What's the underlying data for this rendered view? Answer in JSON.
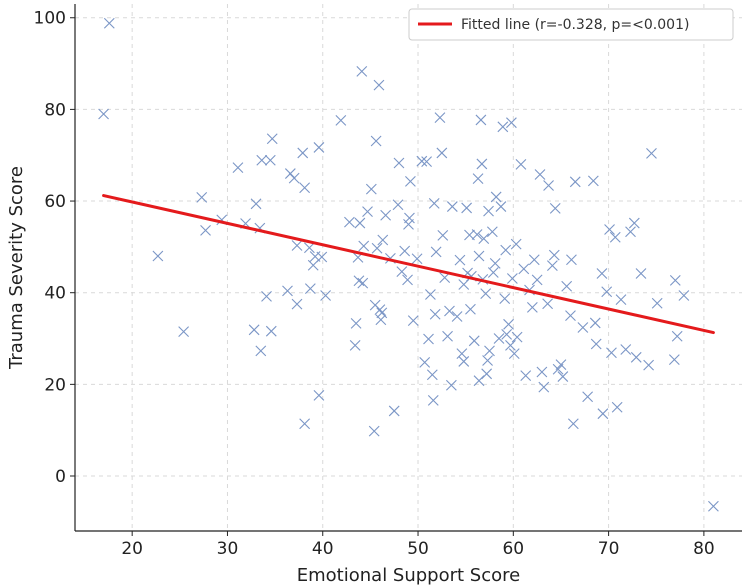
{
  "chart_data": {
    "type": "scatter",
    "title": "",
    "xlabel": "Emotional Support Score",
    "ylabel": "Trauma Severity Score",
    "xlim": [
      14,
      84
    ],
    "ylim": [
      -12,
      103
    ],
    "xticks": [
      20,
      30,
      40,
      50,
      60,
      70,
      80
    ],
    "yticks": [
      0,
      20,
      40,
      60,
      80,
      100
    ],
    "grid": true,
    "legend_position": "top-right",
    "point_color": "#7b96c6",
    "line_color": "#e41a1c",
    "fit_line": {
      "label": "Fitted line (r=-0.328, p=<0.001)",
      "x": [
        17,
        81
      ],
      "y": [
        61.2,
        31.3
      ]
    },
    "series": [
      {
        "marker": "x",
        "points": [
          [
            17,
            79
          ],
          [
            17.6,
            98.8
          ],
          [
            22.7,
            48
          ],
          [
            25.4,
            31.5
          ],
          [
            27.3,
            60.8
          ],
          [
            27.7,
            53.6
          ],
          [
            29.4,
            55.9
          ],
          [
            31.1,
            67.3
          ],
          [
            31.9,
            55.1
          ],
          [
            32.8,
            31.9
          ],
          [
            33,
            59.4
          ],
          [
            33.4,
            54.1
          ],
          [
            33.5,
            27.3
          ],
          [
            33.6,
            68.9
          ],
          [
            34.1,
            39.2
          ],
          [
            34.5,
            68.9
          ],
          [
            34.6,
            31.6
          ],
          [
            34.7,
            73.6
          ],
          [
            36.3,
            40.4
          ],
          [
            36.6,
            66
          ],
          [
            37,
            65
          ],
          [
            37.3,
            37.5
          ],
          [
            37.3,
            50.3
          ],
          [
            37.9,
            70.5
          ],
          [
            38.1,
            11.4
          ],
          [
            38.1,
            62.9
          ],
          [
            38.6,
            49.8
          ],
          [
            38.7,
            40.9
          ],
          [
            39,
            46
          ],
          [
            39.2,
            47.9
          ],
          [
            39.6,
            17.6
          ],
          [
            39.6,
            71.7
          ],
          [
            39.9,
            47.8
          ],
          [
            40.3,
            39.4
          ],
          [
            41.9,
            77.6
          ],
          [
            42.8,
            55.4
          ],
          [
            43.4,
            28.5
          ],
          [
            43.5,
            33.3
          ],
          [
            43.7,
            47.7
          ],
          [
            43.8,
            42.6
          ],
          [
            43.9,
            55.2
          ],
          [
            44.1,
            88.3
          ],
          [
            44.2,
            42.1
          ],
          [
            44.3,
            50.2
          ],
          [
            44.7,
            57.7
          ],
          [
            45.1,
            62.6
          ],
          [
            45.4,
            9.8
          ],
          [
            45.5,
            37.3
          ],
          [
            45.6,
            73.1
          ],
          [
            45.7,
            49.7
          ],
          [
            45.9,
            85.3
          ],
          [
            46,
            36.3
          ],
          [
            46.1,
            34.1
          ],
          [
            46.2,
            35.6
          ],
          [
            46.3,
            51.5
          ],
          [
            46.6,
            56.9
          ],
          [
            47.1,
            47.5
          ],
          [
            47.5,
            14.2
          ],
          [
            47.9,
            59.2
          ],
          [
            48,
            68.3
          ],
          [
            48.3,
            44.6
          ],
          [
            48.6,
            49.1
          ],
          [
            48.9,
            42.8
          ],
          [
            49,
            54.9
          ],
          [
            49.1,
            56.3
          ],
          [
            49.2,
            64.3
          ],
          [
            49.5,
            33.9
          ],
          [
            49.9,
            47.4
          ],
          [
            50.4,
            68.7
          ],
          [
            50.7,
            24.8
          ],
          [
            50.9,
            68.6
          ],
          [
            51.1,
            29.9
          ],
          [
            51.3,
            39.6
          ],
          [
            51.5,
            22.1
          ],
          [
            51.6,
            16.5
          ],
          [
            51.7,
            59.5
          ],
          [
            51.8,
            35.3
          ],
          [
            51.9,
            48.9
          ],
          [
            52.3,
            78.2
          ],
          [
            52.5,
            70.5
          ],
          [
            52.6,
            52.5
          ],
          [
            52.8,
            43.3
          ],
          [
            53.1,
            30.5
          ],
          [
            53.3,
            36
          ],
          [
            53.5,
            19.8
          ],
          [
            53.6,
            58.8
          ],
          [
            54.1,
            34.8
          ],
          [
            54.4,
            47.1
          ],
          [
            54.6,
            26.7
          ],
          [
            54.8,
            25
          ],
          [
            54.8,
            41.8
          ],
          [
            55.1,
            58.5
          ],
          [
            55.2,
            44.3
          ],
          [
            55.4,
            52.6
          ],
          [
            55.5,
            36.4
          ],
          [
            55.6,
            43.6
          ],
          [
            55.9,
            29.5
          ],
          [
            56.2,
            52.7
          ],
          [
            56.3,
            64.9
          ],
          [
            56.4,
            20.8
          ],
          [
            56.4,
            48
          ],
          [
            56.6,
            77.7
          ],
          [
            56.7,
            68.1
          ],
          [
            56.8,
            42.9
          ],
          [
            56.9,
            51.8
          ],
          [
            57.1,
            39.8
          ],
          [
            57.2,
            22.3
          ],
          [
            57.3,
            25.2
          ],
          [
            57.4,
            57.8
          ],
          [
            57.5,
            27.3
          ],
          [
            57.8,
            53.3
          ],
          [
            57.9,
            44.4
          ],
          [
            58.1,
            46.4
          ],
          [
            58.2,
            60.9
          ],
          [
            58.5,
            30
          ],
          [
            58.7,
            58.8
          ],
          [
            58.9,
            76.2
          ],
          [
            59.1,
            38.7
          ],
          [
            59.2,
            49.3
          ],
          [
            59.3,
            30.9
          ],
          [
            59.5,
            33.1
          ],
          [
            59.7,
            28.5
          ],
          [
            59.8,
            77.1
          ],
          [
            59.9,
            43.1
          ],
          [
            60.1,
            26.7
          ],
          [
            60.3,
            50.6
          ],
          [
            60.4,
            30.3
          ],
          [
            60.8,
            68
          ],
          [
            61.1,
            45.2
          ],
          [
            61.3,
            21.9
          ],
          [
            61.7,
            40.6
          ],
          [
            62,
            36.8
          ],
          [
            62.2,
            47.2
          ],
          [
            62.5,
            42.8
          ],
          [
            62.8,
            65.8
          ],
          [
            63,
            22.7
          ],
          [
            63.2,
            19.4
          ],
          [
            63.6,
            37.6
          ],
          [
            63.7,
            63.4
          ],
          [
            64.1,
            45.9
          ],
          [
            64.3,
            48.2
          ],
          [
            64.4,
            58.4
          ],
          [
            64.7,
            23.3
          ],
          [
            65,
            24.3
          ],
          [
            65.2,
            21.7
          ],
          [
            65.6,
            41.4
          ],
          [
            66,
            35
          ],
          [
            66.1,
            47.2
          ],
          [
            66.3,
            11.4
          ],
          [
            66.5,
            64.2
          ],
          [
            67.3,
            32.4
          ],
          [
            67.8,
            17.3
          ],
          [
            68.4,
            64.4
          ],
          [
            68.6,
            33.4
          ],
          [
            68.7,
            28.8
          ],
          [
            69.3,
            44.2
          ],
          [
            69.4,
            13.6
          ],
          [
            69.8,
            40.2
          ],
          [
            70.1,
            53.8
          ],
          [
            70.3,
            26.9
          ],
          [
            70.7,
            52.1
          ],
          [
            70.9,
            15
          ],
          [
            71.3,
            38.5
          ],
          [
            71.8,
            27.6
          ],
          [
            72.3,
            53.3
          ],
          [
            72.7,
            55.2
          ],
          [
            72.9,
            25.9
          ],
          [
            73.4,
            44.2
          ],
          [
            74.2,
            24.2
          ],
          [
            74.5,
            70.4
          ],
          [
            75.1,
            37.7
          ],
          [
            76.9,
            25.4
          ],
          [
            77,
            42.7
          ],
          [
            77.2,
            30.5
          ],
          [
            77.9,
            39.4
          ],
          [
            81,
            -6.6
          ]
        ]
      }
    ]
  }
}
